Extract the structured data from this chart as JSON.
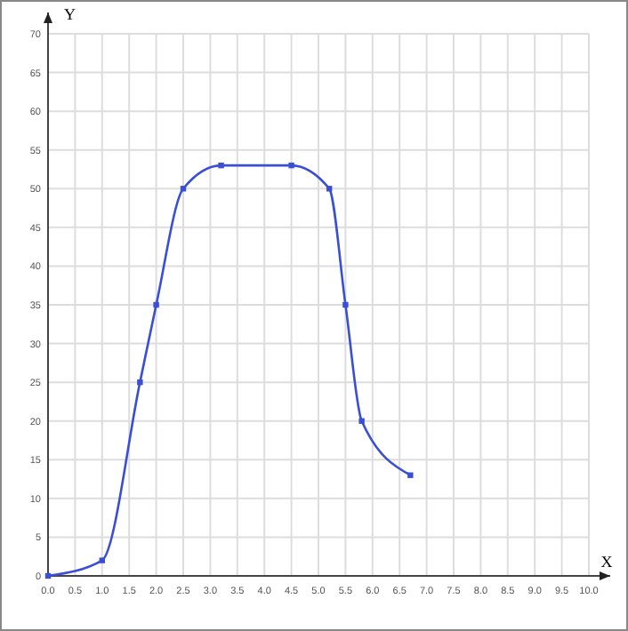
{
  "chart_data": {
    "type": "line",
    "xlabel": "X",
    "ylabel": "Y",
    "x": [
      0,
      1,
      1.7,
      2,
      2.5,
      3.2,
      4.5,
      5.2,
      5.5,
      5.8,
      6.7
    ],
    "series": [
      {
        "color": "#3a4fd6",
        "values": [
          0,
          2,
          25,
          35,
          50,
          53,
          53,
          50,
          35,
          20,
          13
        ]
      }
    ],
    "xlim": [
      0,
      10
    ],
    "ylim": [
      0,
      70
    ],
    "xticks": [
      {
        "value": 0,
        "label": "0.0"
      },
      {
        "value": 0.5,
        "label": "0.5"
      },
      {
        "value": 1,
        "label": "1.0"
      },
      {
        "value": 1.5,
        "label": "1.5"
      },
      {
        "value": 2,
        "label": "2.0"
      },
      {
        "value": 2.5,
        "label": "2.5"
      },
      {
        "value": 3,
        "label": "3.0"
      },
      {
        "value": 3.5,
        "label": "3.5"
      },
      {
        "value": 4,
        "label": "4.0"
      },
      {
        "value": 4.5,
        "label": "4.5"
      },
      {
        "value": 5,
        "label": "5.0"
      },
      {
        "value": 5.5,
        "label": "5.5"
      },
      {
        "value": 6,
        "label": "6.0"
      },
      {
        "value": 6.5,
        "label": "6.5"
      },
      {
        "value": 7,
        "label": "7.0"
      },
      {
        "value": 7.5,
        "label": "7.5"
      },
      {
        "value": 8,
        "label": "8.0"
      },
      {
        "value": 8.5,
        "label": "8.5"
      },
      {
        "value": 9,
        "label": "9.0"
      },
      {
        "value": 9.5,
        "label": "9.5"
      },
      {
        "value": 10,
        "label": "10.0"
      }
    ],
    "yticks": [
      0,
      5,
      10,
      15,
      20,
      25,
      30,
      35,
      40,
      45,
      50,
      55,
      60,
      65,
      70
    ],
    "grid": true,
    "marker": "square",
    "line_style": "solid"
  }
}
